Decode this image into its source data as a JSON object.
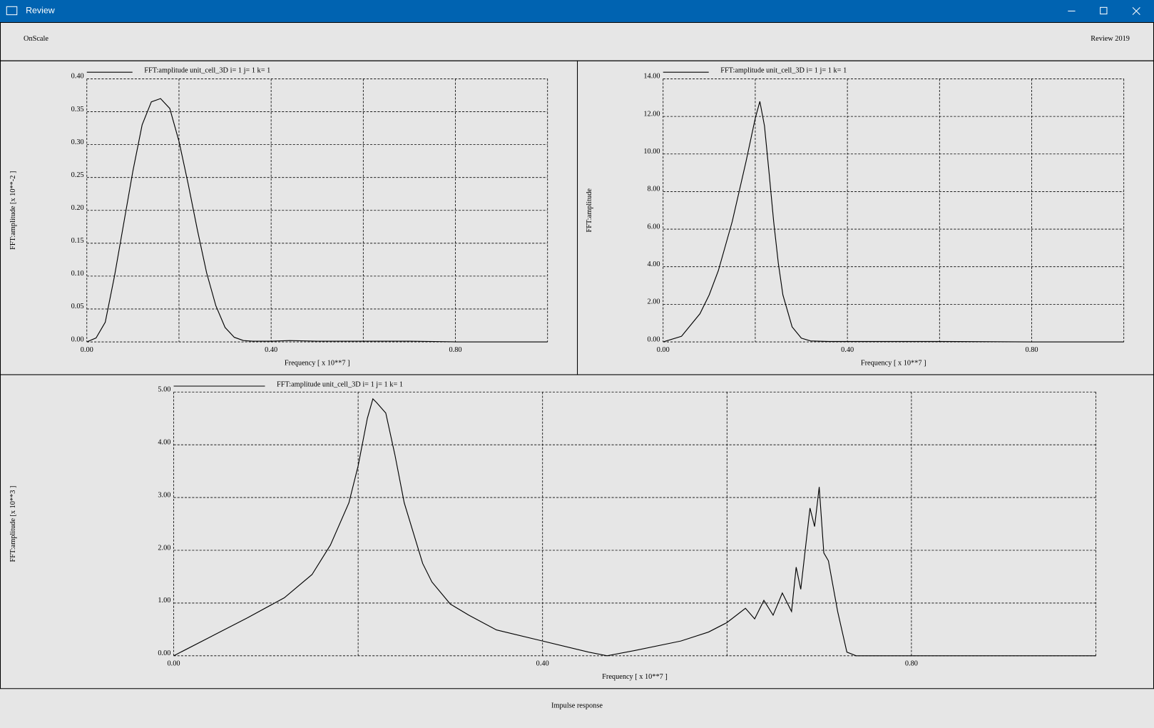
{
  "window": {
    "title": "Review"
  },
  "header": {
    "left": "OnScale",
    "right": "Review 2019"
  },
  "footer": {
    "label": "Impulse response"
  },
  "chart_data": [
    {
      "type": "line",
      "xlabel": "Frequency [ x 10**7 ]",
      "ylabel": "FFT:amplitude [x 10**-2 ]",
      "x": [
        0,
        0.02,
        0.04,
        0.06,
        0.08,
        0.1,
        0.12,
        0.14,
        0.16,
        0.18,
        0.2,
        0.22,
        0.24,
        0.26,
        0.28,
        0.3,
        0.32,
        0.34,
        0.36,
        0.4,
        0.44,
        0.5,
        0.6,
        0.7,
        0.8,
        0.9,
        1.0
      ],
      "series": [
        {
          "name": "FFT:amplitude unit_cell_3D i= 1 j= 1 k= 1",
          "color": "#000000",
          "values": [
            0,
            0.006,
            0.03,
            0.1,
            0.18,
            0.26,
            0.33,
            0.365,
            0.37,
            0.355,
            0.305,
            0.24,
            0.17,
            0.105,
            0.055,
            0.022,
            0.007,
            0.002,
            0.001,
            0.001,
            0.002,
            0.001,
            0.001,
            0.001,
            0,
            0,
            0
          ]
        }
      ],
      "xlim": [
        0,
        1.0
      ],
      "ylim": [
        0,
        0.4
      ],
      "xticks": [
        {
          "value": 0,
          "label": "0.00"
        },
        {
          "value": 0.2,
          "label": null
        },
        {
          "value": 0.4,
          "label": "0.40"
        },
        {
          "value": 0.6,
          "label": null
        },
        {
          "value": 0.8,
          "label": "0.80"
        },
        {
          "value": 1.0,
          "label": null
        }
      ],
      "yticks": [
        {
          "value": 0,
          "label": "0.00"
        },
        {
          "value": 0.05,
          "label": "0.05"
        },
        {
          "value": 0.1,
          "label": "0.10"
        },
        {
          "value": 0.15,
          "label": "0.15"
        },
        {
          "value": 0.2,
          "label": "0.20"
        },
        {
          "value": 0.25,
          "label": "0.25"
        },
        {
          "value": 0.3,
          "label": "0.30"
        },
        {
          "value": 0.35,
          "label": "0.35"
        },
        {
          "value": 0.4,
          "label": "0.40"
        }
      ],
      "grid": true
    },
    {
      "type": "line",
      "xlabel": "Frequency [ x 10**7 ]",
      "ylabel": "FFT:amplitude",
      "x": [
        0,
        0.04,
        0.08,
        0.1,
        0.12,
        0.15,
        0.18,
        0.2,
        0.21,
        0.22,
        0.23,
        0.24,
        0.25,
        0.26,
        0.28,
        0.3,
        0.32,
        0.36,
        0.4,
        0.6,
        0.8,
        1.0
      ],
      "series": [
        {
          "name": "FFT:amplitude unit_cell_3D i= 1 j= 1 k= 1",
          "color": "#000000",
          "values": [
            0,
            0.3,
            1.5,
            2.5,
            3.8,
            6.4,
            9.6,
            11.9,
            12.8,
            11.5,
            9.0,
            6.4,
            4.2,
            2.5,
            0.8,
            0.2,
            0.05,
            0.02,
            0.02,
            0.02,
            0,
            0
          ]
        }
      ],
      "xlim": [
        0,
        1.0
      ],
      "ylim": [
        0,
        14
      ],
      "xticks": [
        {
          "value": 0,
          "label": "0.00"
        },
        {
          "value": 0.2,
          "label": null
        },
        {
          "value": 0.4,
          "label": "0.40"
        },
        {
          "value": 0.6,
          "label": null
        },
        {
          "value": 0.8,
          "label": "0.80"
        },
        {
          "value": 1.0,
          "label": null
        }
      ],
      "yticks": [
        {
          "value": 0,
          "label": "0.00"
        },
        {
          "value": 2,
          "label": "2.00"
        },
        {
          "value": 4,
          "label": "4.00"
        },
        {
          "value": 6,
          "label": "6.00"
        },
        {
          "value": 8,
          "label": "8.00"
        },
        {
          "value": 10,
          "label": "10.00"
        },
        {
          "value": 12,
          "label": "12.00"
        },
        {
          "value": 14,
          "label": "14.00"
        }
      ],
      "grid": true
    },
    {
      "type": "line",
      "xlabel": "Frequency [ x 10**7 ]",
      "ylabel": "FFT:amplitude [x 10**3 ]",
      "x": [
        0,
        0.04,
        0.08,
        0.12,
        0.15,
        0.17,
        0.19,
        0.2,
        0.21,
        0.216,
        0.22,
        0.23,
        0.24,
        0.25,
        0.27,
        0.28,
        0.3,
        0.32,
        0.35,
        0.4,
        0.45,
        0.47,
        0.5,
        0.55,
        0.58,
        0.6,
        0.62,
        0.63,
        0.64,
        0.65,
        0.66,
        0.67,
        0.675,
        0.68,
        0.69,
        0.695,
        0.7,
        0.705,
        0.71,
        0.72,
        0.73,
        0.74,
        0.8,
        0.9,
        1.0
      ],
      "series": [
        {
          "name": "FFT:amplitude unit_cell_3D i= 1 j= 1 k= 1",
          "color": "#000000",
          "values": [
            0,
            0.36,
            0.72,
            1.1,
            1.54,
            2.1,
            2.9,
            3.6,
            4.5,
            4.87,
            4.8,
            4.6,
            3.8,
            2.9,
            1.75,
            1.4,
            0.98,
            0.77,
            0.49,
            0.28,
            0.07,
            0,
            0.1,
            0.28,
            0.45,
            0.63,
            0.9,
            0.7,
            1.05,
            0.77,
            1.19,
            0.84,
            1.68,
            1.26,
            2.8,
            2.45,
            3.2,
            1.95,
            1.8,
            0.84,
            0.07,
            0,
            0,
            0,
            0
          ]
        }
      ],
      "xlim": [
        0,
        1.0
      ],
      "ylim": [
        0,
        5
      ],
      "xticks": [
        {
          "value": 0,
          "label": "0.00"
        },
        {
          "value": 0.2,
          "label": null
        },
        {
          "value": 0.4,
          "label": "0.40"
        },
        {
          "value": 0.6,
          "label": null
        },
        {
          "value": 0.8,
          "label": "0.80"
        },
        {
          "value": 1.0,
          "label": null
        }
      ],
      "yticks": [
        {
          "value": 0,
          "label": "0.00"
        },
        {
          "value": 1,
          "label": "1.00"
        },
        {
          "value": 2,
          "label": "2.00"
        },
        {
          "value": 3,
          "label": "3.00"
        },
        {
          "value": 4,
          "label": "4.00"
        },
        {
          "value": 5,
          "label": "5.00"
        }
      ],
      "grid": true
    }
  ]
}
